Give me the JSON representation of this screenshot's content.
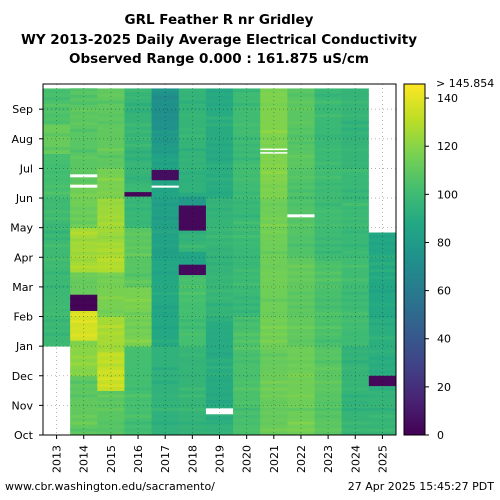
{
  "title": {
    "line1": "GRL Feather R nr Gridley",
    "line2": "WY 2013-2025 Daily Average Electrical Conductivity",
    "line3": "Observed Range 0.000 : 161.875 uS/cm"
  },
  "footer": {
    "left": "www.cbr.washington.edu/sacramento/",
    "right": "27 Apr 2025 15:45:27 PDT"
  },
  "chart_data": {
    "type": "heatmap",
    "title": "GRL Feather R nr Gridley WY 2013-2025 Daily Average Electrical Conductivity",
    "x": [
      "2013",
      "2014",
      "2015",
      "2016",
      "2017",
      "2018",
      "2019",
      "2020",
      "2021",
      "2022",
      "2023",
      "2024",
      "2025"
    ],
    "y_ticks": [
      "Oct",
      "Nov",
      "Dec",
      "Jan",
      "Feb",
      "Mar",
      "Apr",
      "May",
      "Jun",
      "Jul",
      "Aug",
      "Sep"
    ],
    "colorbar": {
      "min": 0,
      "max": 145.854,
      "top_label": "> 145.854",
      "ticks": [
        0,
        20,
        40,
        60,
        80,
        100,
        120,
        140
      ],
      "colormap": "viridis"
    },
    "observed_range": [
      0.0,
      161.875
    ],
    "grid": true,
    "cell_segments": [
      [
        [
          0,
          3,
          null
        ],
        [
          3,
          8,
          99
        ],
        [
          8,
          9.5,
          102
        ],
        [
          9.5,
          10.5,
          112
        ],
        [
          10.5,
          11.7,
          104
        ]
      ],
      [
        [
          0,
          2,
          110
        ],
        [
          2,
          3.2,
          120
        ],
        [
          3.2,
          4.2,
          136
        ],
        [
          4.2,
          4.75,
          2
        ],
        [
          4.75,
          5.5,
          112
        ],
        [
          5.5,
          7,
          126
        ],
        [
          7,
          8.5,
          114
        ],
        [
          8.5,
          11.7,
          108
        ]
      ],
      [
        [
          0,
          1.5,
          108
        ],
        [
          1.5,
          2.8,
          133
        ],
        [
          2.8,
          4,
          126
        ],
        [
          4,
          5.5,
          116
        ],
        [
          5.5,
          6.5,
          128
        ],
        [
          6.5,
          8,
          124
        ],
        [
          8,
          9,
          116
        ],
        [
          9,
          11.7,
          110
        ]
      ],
      [
        [
          0,
          3,
          102
        ],
        [
          3,
          5,
          116
        ],
        [
          5,
          7,
          108
        ],
        [
          7,
          8.5,
          98
        ],
        [
          8.5,
          9.15,
          96
        ],
        [
          9.15,
          11.7,
          96
        ]
      ],
      [
        [
          0,
          3,
          94
        ],
        [
          3,
          6,
          88
        ],
        [
          6,
          8,
          84
        ],
        [
          8,
          9,
          86
        ],
        [
          9,
          9.5,
          86
        ],
        [
          9.5,
          10.3,
          80
        ],
        [
          10.3,
          11.7,
          74
        ]
      ],
      [
        [
          0,
          3,
          96
        ],
        [
          3,
          5.5,
          102
        ],
        [
          5.5,
          6.2,
          86
        ],
        [
          6.2,
          7.2,
          96
        ],
        [
          7.2,
          8.2,
          90
        ],
        [
          8.2,
          9,
          94
        ],
        [
          9,
          11.7,
          96
        ]
      ],
      [
        [
          0,
          0.5,
          95
        ],
        [
          0.5,
          4,
          90
        ],
        [
          4,
          8,
          96
        ],
        [
          8,
          11.7,
          90
        ]
      ],
      [
        [
          0,
          4,
          104
        ],
        [
          4,
          8,
          98
        ],
        [
          8,
          11.7,
          100
        ]
      ],
      [
        [
          0,
          3,
          112
        ],
        [
          3,
          8,
          114
        ],
        [
          8,
          11.7,
          118
        ]
      ],
      [
        [
          0,
          3,
          114
        ],
        [
          3,
          6,
          110
        ],
        [
          6,
          9,
          106
        ],
        [
          9,
          11.7,
          108
        ]
      ],
      [
        [
          0,
          3,
          108
        ],
        [
          3,
          6,
          104
        ],
        [
          6,
          9,
          100
        ],
        [
          9,
          11.7,
          98
        ]
      ],
      [
        [
          0,
          3,
          96
        ],
        [
          3,
          6,
          100
        ],
        [
          6,
          9,
          98
        ],
        [
          9,
          11.7,
          96
        ]
      ],
      [
        [
          0,
          1.5,
          96
        ],
        [
          1.5,
          4,
          92
        ],
        [
          4,
          6.85,
          88
        ],
        [
          6.85,
          11.7,
          null
        ]
      ]
    ],
    "anomalies": [
      {
        "col": 1,
        "y0": 8.35,
        "y1": 8.45,
        "value": null
      },
      {
        "col": 1,
        "y0": 8.7,
        "y1": 8.8,
        "value": null
      },
      {
        "col": 3,
        "y0": 8.05,
        "y1": 8.2,
        "value": 2
      },
      {
        "col": 4,
        "y0": 8.6,
        "y1": 8.95,
        "value": 5
      },
      {
        "col": 4,
        "y0": 8.35,
        "y1": 8.42,
        "value": null
      },
      {
        "col": 5,
        "y0": 6.9,
        "y1": 7.75,
        "value": 3
      },
      {
        "col": 5,
        "y0": 5.4,
        "y1": 5.75,
        "value": 4
      },
      {
        "col": 5,
        "y0": 7.75,
        "y1": 8.05,
        "value": 80
      },
      {
        "col": 6,
        "y0": 0.7,
        "y1": 0.9,
        "value": null
      },
      {
        "col": 8,
        "y0": 9.5,
        "y1": 9.55,
        "value": null
      },
      {
        "col": 8,
        "y0": 9.62,
        "y1": 9.67,
        "value": null
      },
      {
        "col": 9,
        "y0": 7.35,
        "y1": 7.45,
        "value": null
      },
      {
        "col": 12,
        "y0": 1.65,
        "y1": 2.0,
        "value": 3
      }
    ]
  }
}
